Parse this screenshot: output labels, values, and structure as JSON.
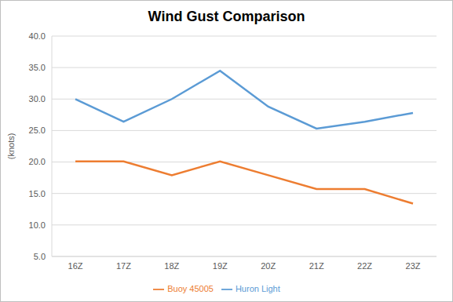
{
  "chart_data": {
    "type": "line",
    "title": "Wind Gust Comparison",
    "y_label": "(knots)",
    "categories": [
      "16Z",
      "17Z",
      "18Z",
      "19Z",
      "20Z",
      "21Z",
      "22Z",
      "23Z"
    ],
    "series": [
      {
        "name": "Huron Light",
        "color": "#5b9bd5",
        "values": [
          30.0,
          26.4,
          30.0,
          34.5,
          28.8,
          25.3,
          26.4,
          27.8
        ]
      },
      {
        "name": "Buoy 45005",
        "color": "#ed7d31",
        "values": [
          20.1,
          20.1,
          17.9,
          20.1,
          17.9,
          15.7,
          15.7,
          13.4
        ]
      }
    ],
    "ylim": [
      5,
      40
    ],
    "yticks": [
      {
        "value": 5,
        "label": "5.0"
      },
      {
        "value": 10,
        "label": "10.0"
      },
      {
        "value": 15,
        "label": "15.0"
      },
      {
        "value": 20,
        "label": "20.0"
      },
      {
        "value": 25,
        "label": "25.0"
      },
      {
        "value": 30,
        "label": "30.0"
      },
      {
        "value": 35,
        "label": "35.0"
      },
      {
        "value": 40,
        "label": "40.0"
      }
    ],
    "grid": true,
    "legend": "bottom"
  }
}
